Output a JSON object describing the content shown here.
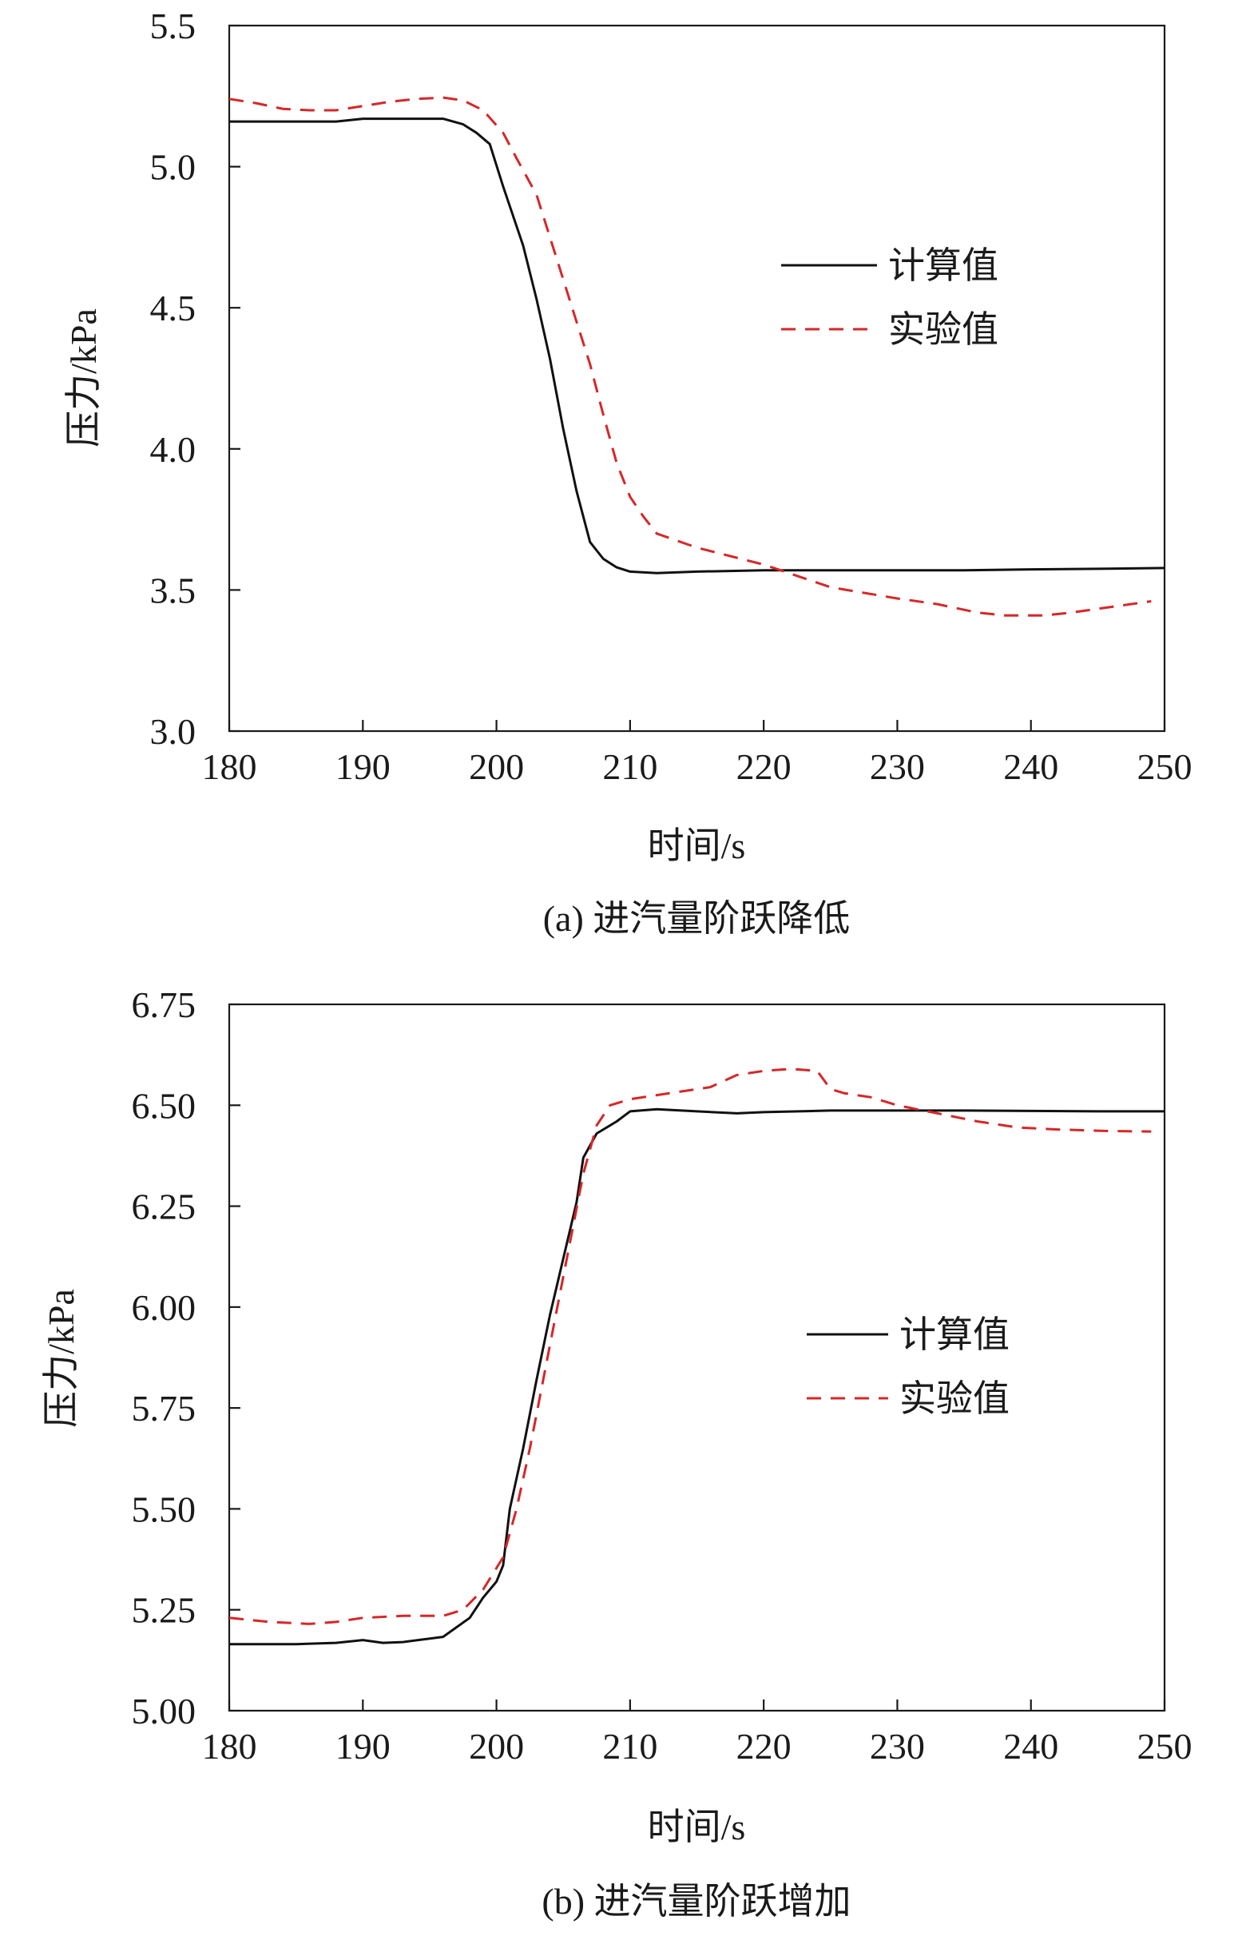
{
  "chart_data": [
    {
      "type": "line",
      "caption": "(a) 进汽量阶跃降低",
      "xlabel": "时间/s",
      "ylabel": "压力/kPa",
      "xlim": [
        180,
        250
      ],
      "ylim": [
        3.0,
        5.5
      ],
      "xticks": [
        180,
        190,
        200,
        210,
        220,
        230,
        240,
        250
      ],
      "xtick_labels": [
        "180",
        "190",
        "200",
        "210",
        "220",
        "230",
        "240",
        "250"
      ],
      "yticks": [
        3.0,
        3.5,
        4.0,
        4.5,
        5.0,
        5.5
      ],
      "ytick_labels": [
        "3.0",
        "3.5",
        "4.0",
        "4.5",
        "5.0",
        "5.5"
      ],
      "legend_position": "right-middle",
      "grid": false,
      "series": [
        {
          "name": "计算值",
          "color": "#111111",
          "style": "solid",
          "points": [
            [
              180,
              5.16
            ],
            [
              185,
              5.16
            ],
            [
              188,
              5.16
            ],
            [
              190,
              5.17
            ],
            [
              193,
              5.17
            ],
            [
              196,
              5.17
            ],
            [
              197.5,
              5.15
            ],
            [
              198.5,
              5.12
            ],
            [
              199.5,
              5.08
            ],
            [
              200.5,
              4.93
            ],
            [
              202,
              4.72
            ],
            [
              203,
              4.53
            ],
            [
              204,
              4.32
            ],
            [
              205,
              4.07
            ],
            [
              206,
              3.85
            ],
            [
              207,
              3.67
            ],
            [
              208,
              3.61
            ],
            [
              209,
              3.58
            ],
            [
              210,
              3.565
            ],
            [
              212,
              3.56
            ],
            [
              215,
              3.565
            ],
            [
              220,
              3.57
            ],
            [
              225,
              3.57
            ],
            [
              230,
              3.57
            ],
            [
              235,
              3.57
            ],
            [
              240,
              3.573
            ],
            [
              245,
              3.575
            ],
            [
              250,
              3.578
            ]
          ]
        },
        {
          "name": "实验值",
          "color": "#d62728",
          "style": "dashed",
          "points": [
            [
              180,
              5.24
            ],
            [
              182,
              5.225
            ],
            [
              184,
              5.205
            ],
            [
              186,
              5.2
            ],
            [
              188,
              5.2
            ],
            [
              190,
              5.215
            ],
            [
              192,
              5.23
            ],
            [
              194,
              5.24
            ],
            [
              196,
              5.245
            ],
            [
              197.5,
              5.235
            ],
            [
              199,
              5.2
            ],
            [
              200.5,
              5.12
            ],
            [
              201.5,
              5.03
            ],
            [
              203,
              4.9
            ],
            [
              204,
              4.75
            ],
            [
              205,
              4.6
            ],
            [
              206,
              4.45
            ],
            [
              207,
              4.3
            ],
            [
              208,
              4.12
            ],
            [
              209,
              3.95
            ],
            [
              210,
              3.83
            ],
            [
              211,
              3.76
            ],
            [
              212,
              3.7
            ],
            [
              215,
              3.65
            ],
            [
              220,
              3.59
            ],
            [
              225,
              3.51
            ],
            [
              230,
              3.47
            ],
            [
              233,
              3.45
            ],
            [
              236,
              3.42
            ],
            [
              238,
              3.41
            ],
            [
              241,
              3.41
            ],
            [
              243,
              3.42
            ],
            [
              246,
              3.44
            ],
            [
              249,
              3.46
            ]
          ]
        }
      ]
    },
    {
      "type": "line",
      "caption": "(b) 进汽量阶跃增加",
      "xlabel": "时间/s",
      "ylabel": "压力/kPa",
      "xlim": [
        180,
        250
      ],
      "ylim": [
        5.0,
        6.75
      ],
      "xticks": [
        180,
        190,
        200,
        210,
        220,
        230,
        240,
        250
      ],
      "xtick_labels": [
        "180",
        "190",
        "200",
        "210",
        "220",
        "230",
        "240",
        "250"
      ],
      "yticks": [
        5.0,
        5.25,
        5.5,
        5.75,
        6.0,
        6.25,
        6.5,
        6.75
      ],
      "ytick_labels": [
        "5.00",
        "5.25",
        "5.50",
        "5.75",
        "6.00",
        "6.25",
        "6.50",
        "6.75"
      ],
      "legend_position": "right-middle",
      "grid": false,
      "series": [
        {
          "name": "计算值",
          "color": "#111111",
          "style": "solid",
          "points": [
            [
              180,
              5.165
            ],
            [
              185,
              5.165
            ],
            [
              188,
              5.168
            ],
            [
              190,
              5.175
            ],
            [
              191.5,
              5.168
            ],
            [
              193,
              5.17
            ],
            [
              196,
              5.183
            ],
            [
              198,
              5.23
            ],
            [
              199,
              5.28
            ],
            [
              200,
              5.32
            ],
            [
              200.5,
              5.36
            ],
            [
              201,
              5.5
            ],
            [
              202,
              5.65
            ],
            [
              203,
              5.82
            ],
            [
              204,
              5.98
            ],
            [
              205,
              6.12
            ],
            [
              206,
              6.26
            ],
            [
              206.5,
              6.37
            ],
            [
              207.5,
              6.43
            ],
            [
              209,
              6.46
            ],
            [
              210,
              6.485
            ],
            [
              212,
              6.49
            ],
            [
              215,
              6.485
            ],
            [
              218,
              6.48
            ],
            [
              220,
              6.483
            ],
            [
              225,
              6.487
            ],
            [
              230,
              6.487
            ],
            [
              235,
              6.487
            ],
            [
              240,
              6.486
            ],
            [
              245,
              6.485
            ],
            [
              250,
              6.485
            ]
          ]
        },
        {
          "name": "实验值",
          "color": "#d62728",
          "style": "dashed",
          "points": [
            [
              180,
              5.23
            ],
            [
              183,
              5.22
            ],
            [
              186,
              5.215
            ],
            [
              188,
              5.22
            ],
            [
              190,
              5.23
            ],
            [
              193,
              5.235
            ],
            [
              196,
              5.235
            ],
            [
              197.5,
              5.25
            ],
            [
              199,
              5.3
            ],
            [
              200.5,
              5.38
            ],
            [
              201.5,
              5.5
            ],
            [
              202.5,
              5.65
            ],
            [
              203.5,
              5.82
            ],
            [
              204.5,
              5.99
            ],
            [
              205.5,
              6.16
            ],
            [
              206.5,
              6.33
            ],
            [
              207.5,
              6.45
            ],
            [
              208.5,
              6.5
            ],
            [
              210,
              6.515
            ],
            [
              213,
              6.53
            ],
            [
              216,
              6.545
            ],
            [
              218,
              6.575
            ],
            [
              220,
              6.585
            ],
            [
              222,
              6.59
            ],
            [
              224,
              6.585
            ],
            [
              225,
              6.54
            ],
            [
              226,
              6.53
            ],
            [
              228,
              6.52
            ],
            [
              230,
              6.5
            ],
            [
              233,
              6.48
            ],
            [
              236,
              6.46
            ],
            [
              239,
              6.445
            ],
            [
              242,
              6.44
            ],
            [
              246,
              6.436
            ],
            [
              249,
              6.435
            ]
          ]
        }
      ]
    }
  ]
}
